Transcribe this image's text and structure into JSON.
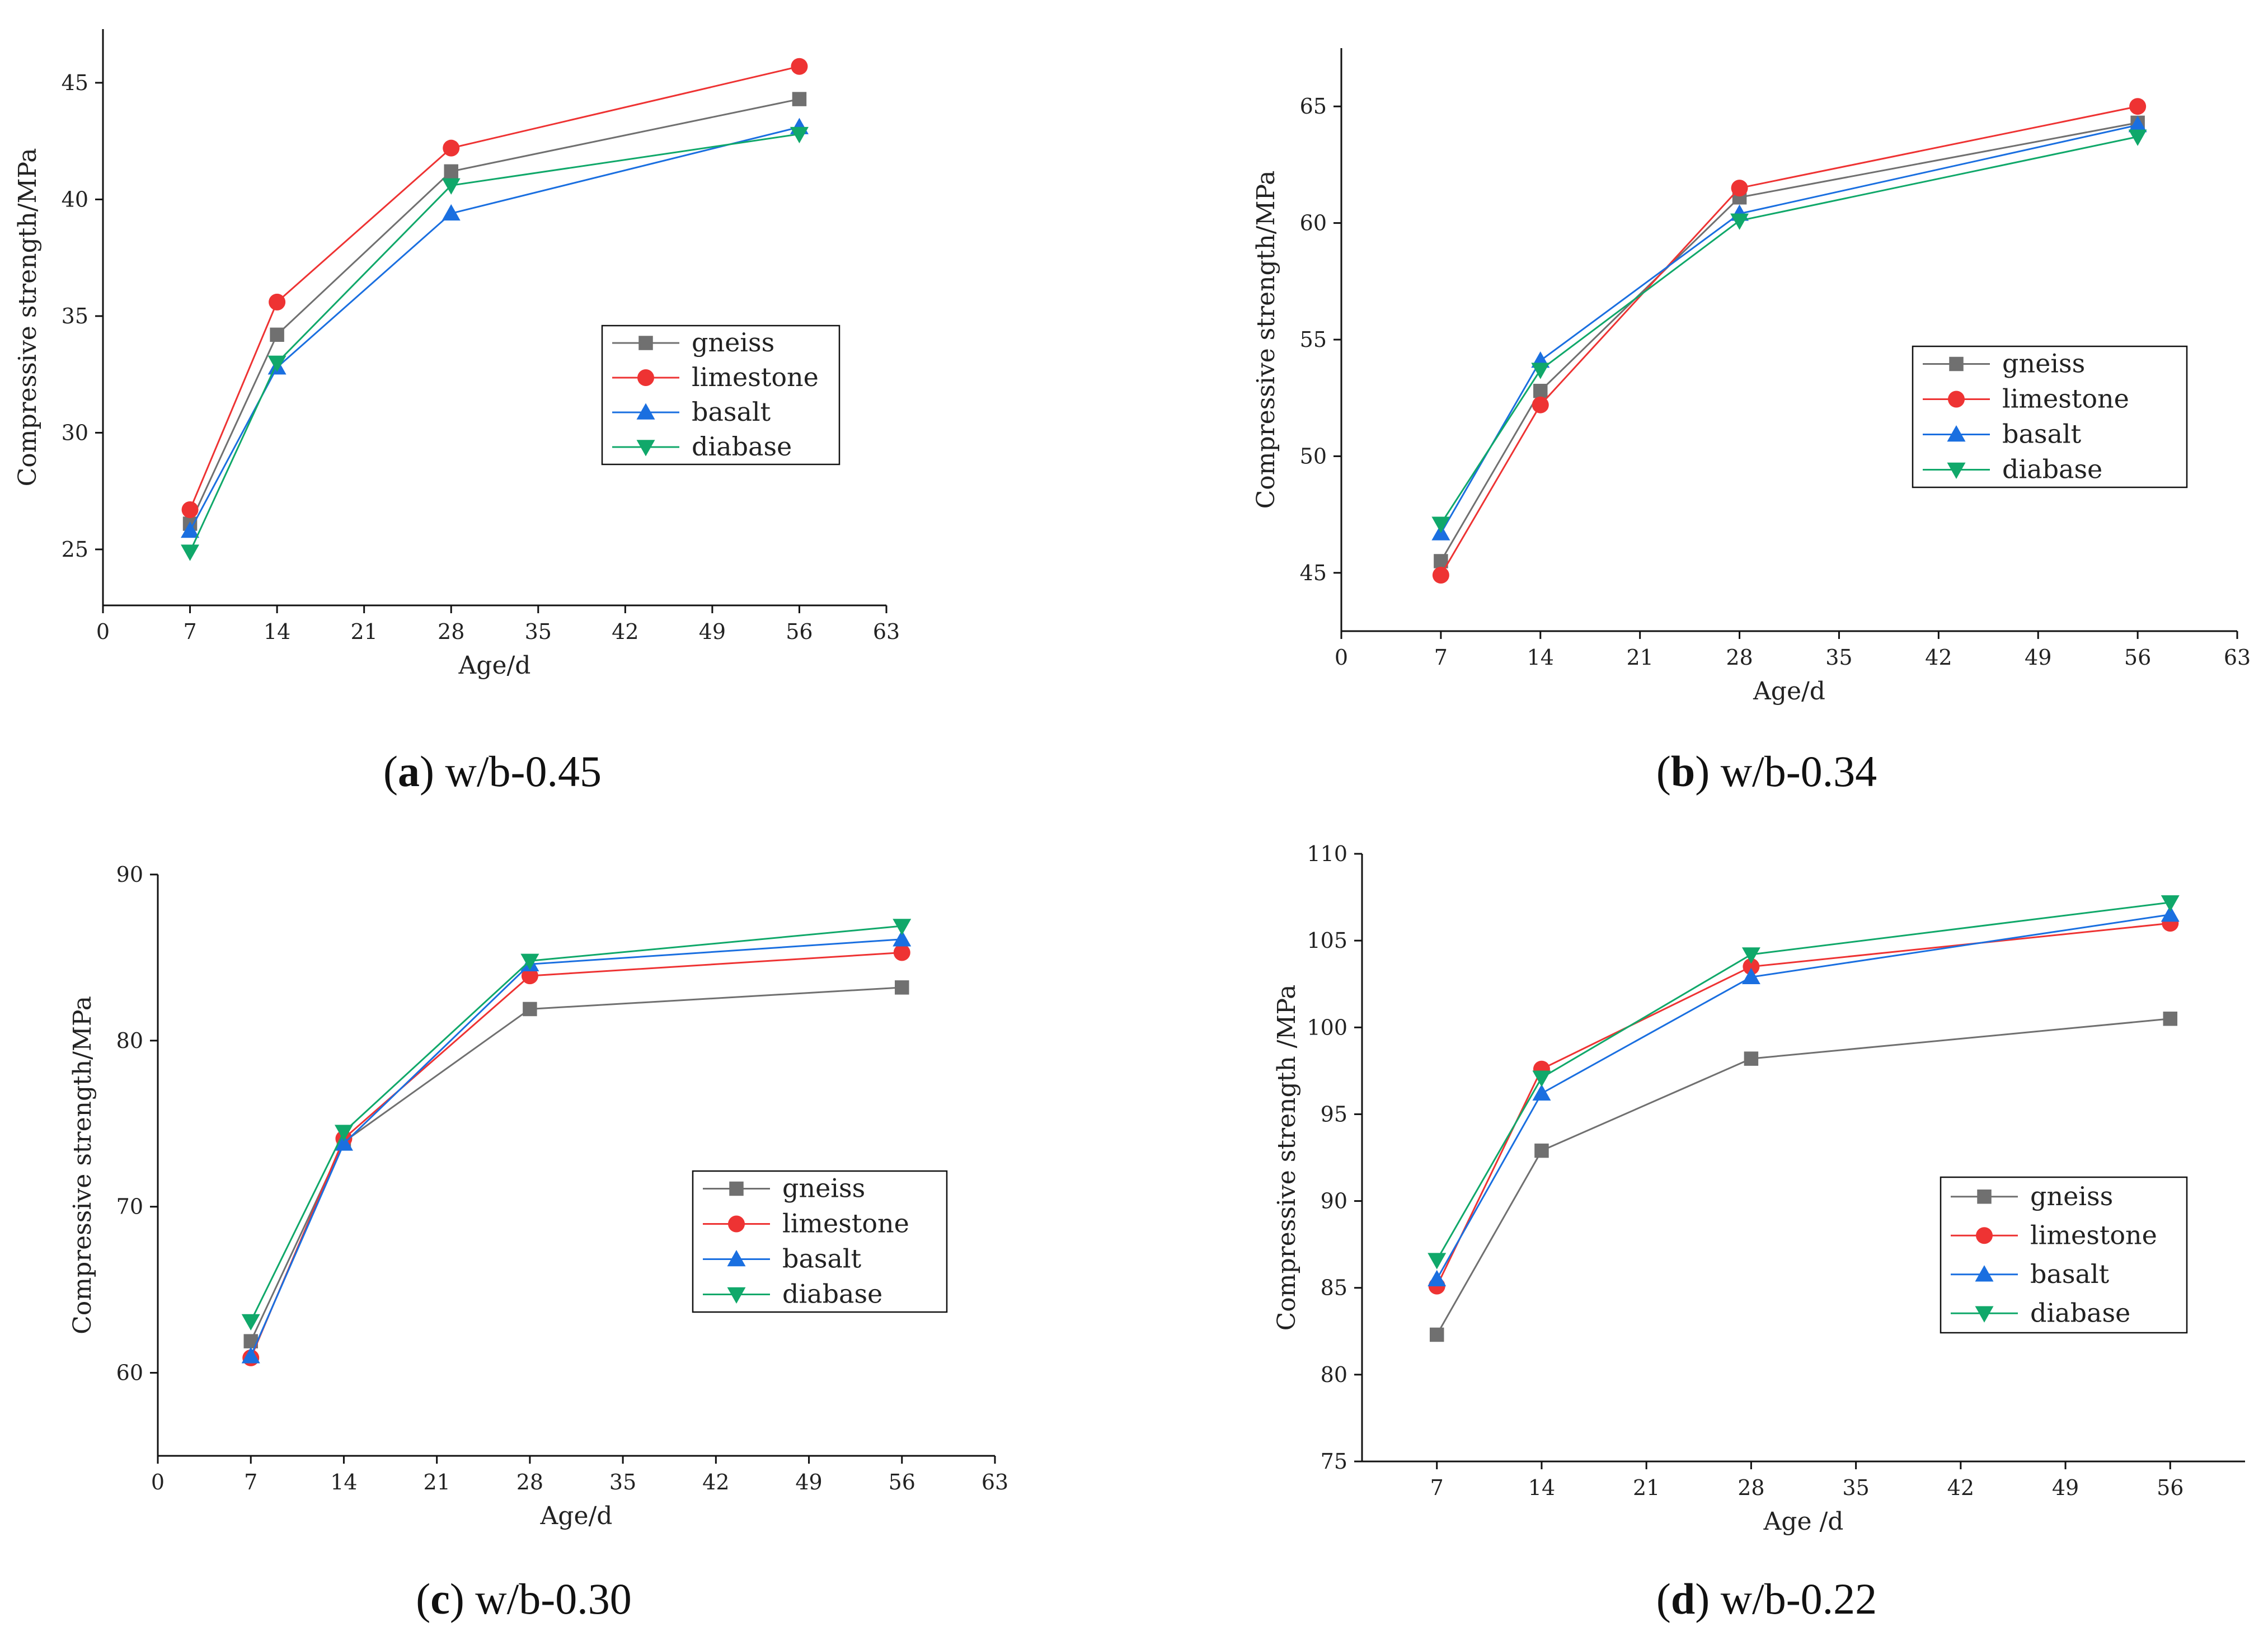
{
  "styles": {
    "gneiss": {
      "color": "#707070",
      "marker": "square"
    },
    "limestone": {
      "color": "#ee3333",
      "marker": "circle"
    },
    "basalt": {
      "color": "#1a6fe0",
      "marker": "triangle-up"
    },
    "diabase": {
      "color": "#10a86a",
      "marker": "triangle-down"
    }
  },
  "chart_data": [
    {
      "type": "line",
      "label": "a",
      "caption": "w/b-0.45",
      "xlabel": "Age/d",
      "ylabel": "Compressive strength/MPa",
      "xlim": [
        0,
        63
      ],
      "ylim": [
        22.6,
        47.3
      ],
      "xticks": [
        "0",
        "7",
        "14",
        "21",
        "28",
        "35",
        "42",
        "49",
        "56",
        "63"
      ],
      "yticks": [
        "25",
        "30",
        "35",
        "40",
        "45"
      ],
      "legend_position": "center-right",
      "x": [
        7,
        14,
        28,
        56
      ],
      "series": [
        {
          "name": "gneiss",
          "values": [
            26.1,
            34.2,
            41.2,
            44.3
          ]
        },
        {
          "name": "limestone",
          "values": [
            26.7,
            35.6,
            42.2,
            45.7
          ]
        },
        {
          "name": "basalt",
          "values": [
            25.8,
            32.8,
            39.4,
            43.1
          ]
        },
        {
          "name": "diabase",
          "values": [
            24.9,
            33.0,
            40.6,
            42.8
          ]
        }
      ]
    },
    {
      "type": "line",
      "label": "b",
      "caption": "w/b-0.34",
      "xlabel": "Age/d",
      "ylabel": "Compressive strength/MPa",
      "xlim": [
        0,
        63
      ],
      "ylim": [
        42.5,
        67.5
      ],
      "xticks": [
        "0",
        "7",
        "14",
        "21",
        "28",
        "35",
        "42",
        "49",
        "56",
        "63"
      ],
      "yticks": [
        "45",
        "50",
        "55",
        "60",
        "65"
      ],
      "legend_position": "center-right",
      "x": [
        7,
        14,
        28,
        56
      ],
      "series": [
        {
          "name": "gneiss",
          "values": [
            45.5,
            52.8,
            61.1,
            64.3
          ]
        },
        {
          "name": "limestone",
          "values": [
            44.9,
            52.2,
            61.5,
            65.0
          ]
        },
        {
          "name": "basalt",
          "values": [
            46.7,
            54.1,
            60.4,
            64.2
          ]
        },
        {
          "name": "diabase",
          "values": [
            47.1,
            53.7,
            60.1,
            63.7
          ]
        }
      ]
    },
    {
      "type": "line",
      "label": "c",
      "caption": "w/b-0.30",
      "xlabel": "Age/d",
      "ylabel": "Compressive strength/MPa",
      "xlim": [
        0,
        63
      ],
      "ylim": [
        55,
        90
      ],
      "xticks": [
        "0",
        "7",
        "14",
        "21",
        "28",
        "35",
        "42",
        "49",
        "56",
        "63"
      ],
      "yticks": [
        "60",
        "70",
        "80",
        "90"
      ],
      "legend_position": "center-right",
      "x": [
        7,
        14,
        28,
        56
      ],
      "series": [
        {
          "name": "gneiss",
          "values": [
            61.9,
            73.9,
            81.9,
            83.2
          ]
        },
        {
          "name": "limestone",
          "values": [
            60.9,
            74.1,
            83.9,
            85.3
          ]
        },
        {
          "name": "basalt",
          "values": [
            61.0,
            73.8,
            84.6,
            86.1
          ]
        },
        {
          "name": "diabase",
          "values": [
            63.1,
            74.5,
            84.8,
            86.9
          ]
        }
      ]
    },
    {
      "type": "line",
      "label": "d",
      "caption": "w/b-0.22",
      "xlabel": "Age /d",
      "ylabel": "Compressive strength /MPa",
      "xlim": [
        2,
        61
      ],
      "ylim": [
        75,
        110
      ],
      "xticks": [
        "7",
        "14",
        "21",
        "28",
        "35",
        "42",
        "49",
        "56"
      ],
      "yticks": [
        "75",
        "80",
        "85",
        "90",
        "95",
        "100",
        "105",
        "110"
      ],
      "legend_position": "center-right",
      "x": [
        7,
        14,
        28,
        56
      ],
      "series": [
        {
          "name": "gneiss",
          "values": [
            82.3,
            92.9,
            98.2,
            100.5
          ]
        },
        {
          "name": "limestone",
          "values": [
            85.1,
            97.6,
            103.5,
            106.0
          ]
        },
        {
          "name": "basalt",
          "values": [
            85.5,
            96.2,
            102.9,
            106.5
          ]
        },
        {
          "name": "diabase",
          "values": [
            86.6,
            97.1,
            104.2,
            107.2
          ]
        }
      ]
    }
  ]
}
